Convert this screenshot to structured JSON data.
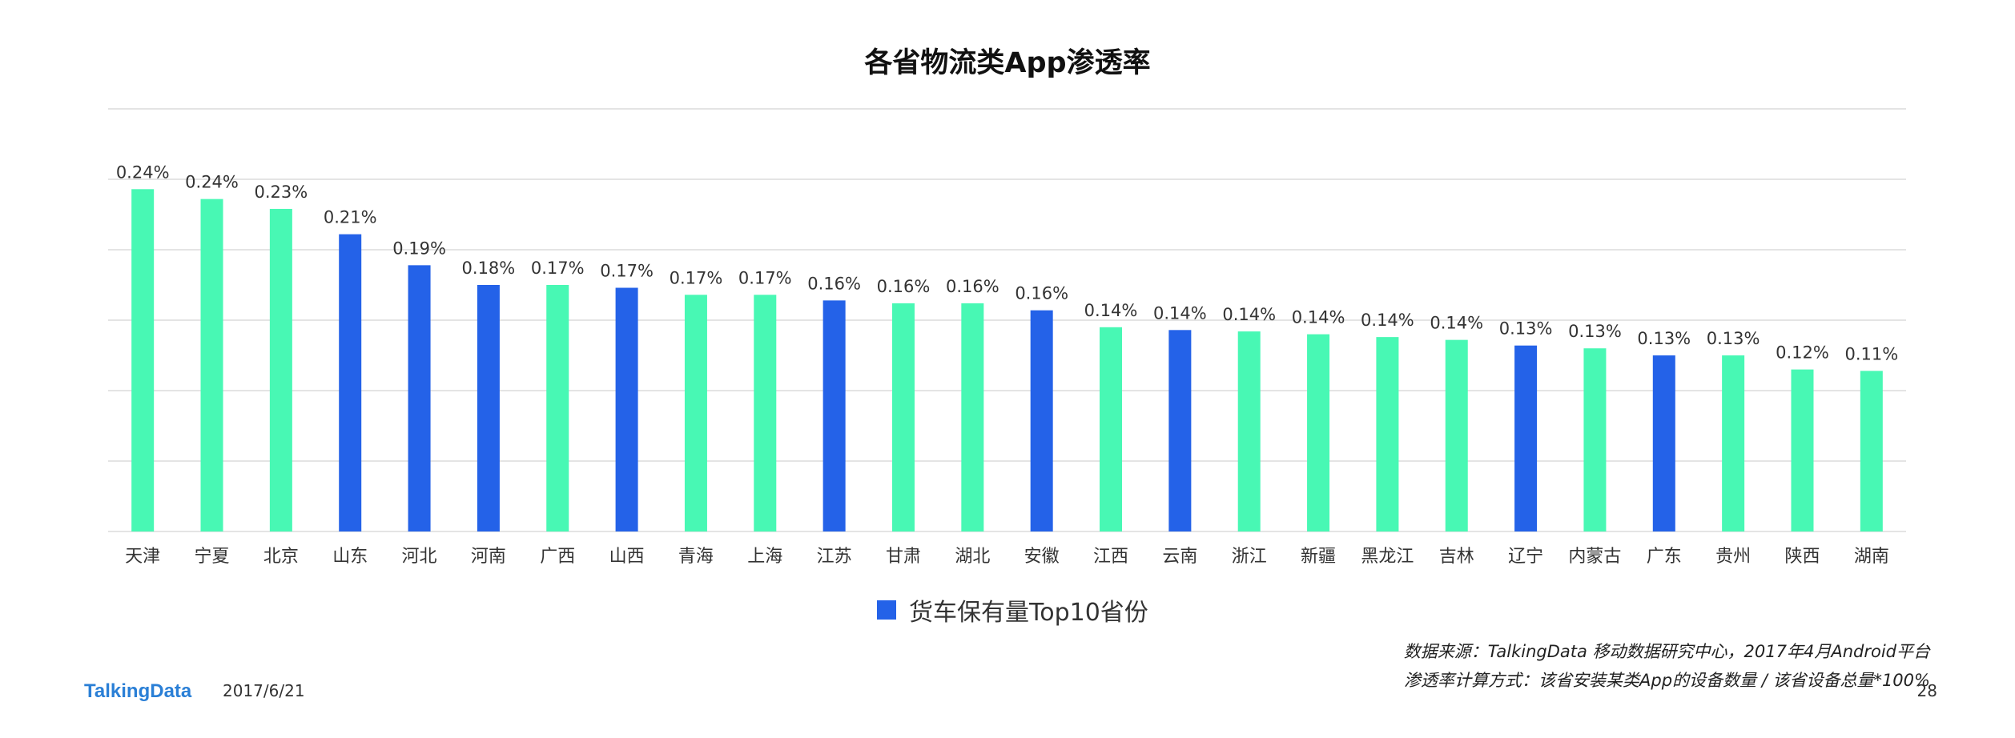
{
  "title": "各省物流类App渗透率",
  "colors": {
    "highlight": "#2462e8",
    "normal": "#48f8b4",
    "grid": "#dcdcdc",
    "text": "#333333"
  },
  "chart_data": {
    "type": "bar",
    "title": "各省物流类App渗透率",
    "xlabel": "",
    "ylabel": "",
    "ylim": [
      0,
      0.3
    ],
    "grid": true,
    "legend_position": "bottom",
    "value_suffix": "%",
    "categories": [
      "天津",
      "宁夏",
      "北京",
      "山东",
      "河北",
      "河南",
      "广西",
      "山西",
      "青海",
      "上海",
      "江苏",
      "甘肃",
      "湖北",
      "安徽",
      "江西",
      "云南",
      "浙江",
      "新疆",
      "黑龙江",
      "吉林",
      "辽宁",
      "内蒙古",
      "广东",
      "贵州",
      "陕西",
      "湖南"
    ],
    "values": [
      0.243,
      0.236,
      0.229,
      0.211,
      0.189,
      0.175,
      0.175,
      0.173,
      0.168,
      0.168,
      0.164,
      0.162,
      0.162,
      0.157,
      0.145,
      0.143,
      0.142,
      0.14,
      0.138,
      0.136,
      0.132,
      0.13,
      0.125,
      0.125,
      0.115,
      0.114
    ],
    "labels": [
      "0.24%",
      "0.24%",
      "0.23%",
      "0.21%",
      "0.19%",
      "0.18%",
      "0.17%",
      "0.17%",
      "0.17%",
      "0.17%",
      "0.16%",
      "0.16%",
      "0.16%",
      "0.16%",
      "0.14%",
      "0.14%",
      "0.14%",
      "0.14%",
      "0.14%",
      "0.14%",
      "0.13%",
      "0.13%",
      "0.13%",
      "0.13%",
      "0.12%",
      "0.11%"
    ],
    "highlight": [
      false,
      false,
      false,
      true,
      true,
      true,
      false,
      true,
      false,
      false,
      true,
      false,
      false,
      true,
      false,
      true,
      false,
      false,
      false,
      false,
      true,
      false,
      true,
      false,
      false,
      false
    ],
    "legend": [
      "货车保有量Top10省份"
    ]
  },
  "legend": {
    "label": "货车保有量Top10省份"
  },
  "footer": {
    "source_line1": "数据来源：TalkingData 移动数据研究中心，2017年4月Android平台",
    "source_line2": "渗透率计算方式：该省安装某类App的设备数量 / 该省设备总量*100%",
    "logo": "TalkingData",
    "date": "2017/6/21",
    "page": "28"
  }
}
